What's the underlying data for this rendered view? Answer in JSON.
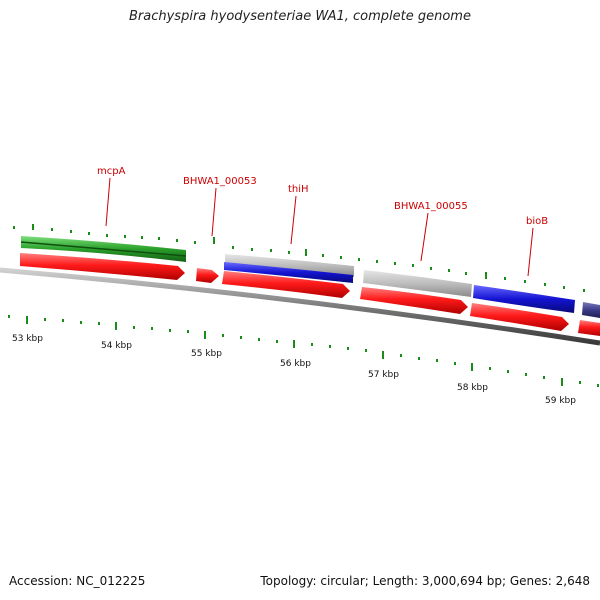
{
  "title": "Brachyspira hyodysenteriae WA1, complete genome",
  "footer": {
    "accession": "Accession: NC_012225",
    "summary": "Topology: circular; Length: 3,000,694 bp; Genes: 2,648"
  },
  "gene_labels": [
    {
      "id": "mcpA",
      "text": "mcpA"
    },
    {
      "id": "BHWA1_00053",
      "text": "BHWA1_00053"
    },
    {
      "id": "thiH",
      "text": "thiH"
    },
    {
      "id": "BHWA1_00055",
      "text": "BHWA1_00055"
    },
    {
      "id": "bioB",
      "text": "bioB"
    }
  ],
  "scale_labels": [
    "53 kbp",
    "54 kbp",
    "55 kbp",
    "56 kbp",
    "57 kbp",
    "58 kbp",
    "59 kbp"
  ],
  "colors": {
    "cds_red": "#e60000",
    "gene_green": "#2aa02a",
    "gene_blue": "#1414d2",
    "gene_gray": "#b8b8b8",
    "gene_navy": "#3c3c8a",
    "tick_green": "#1a8c1a",
    "backbone": "#808080",
    "label_red": "#cc0000"
  }
}
